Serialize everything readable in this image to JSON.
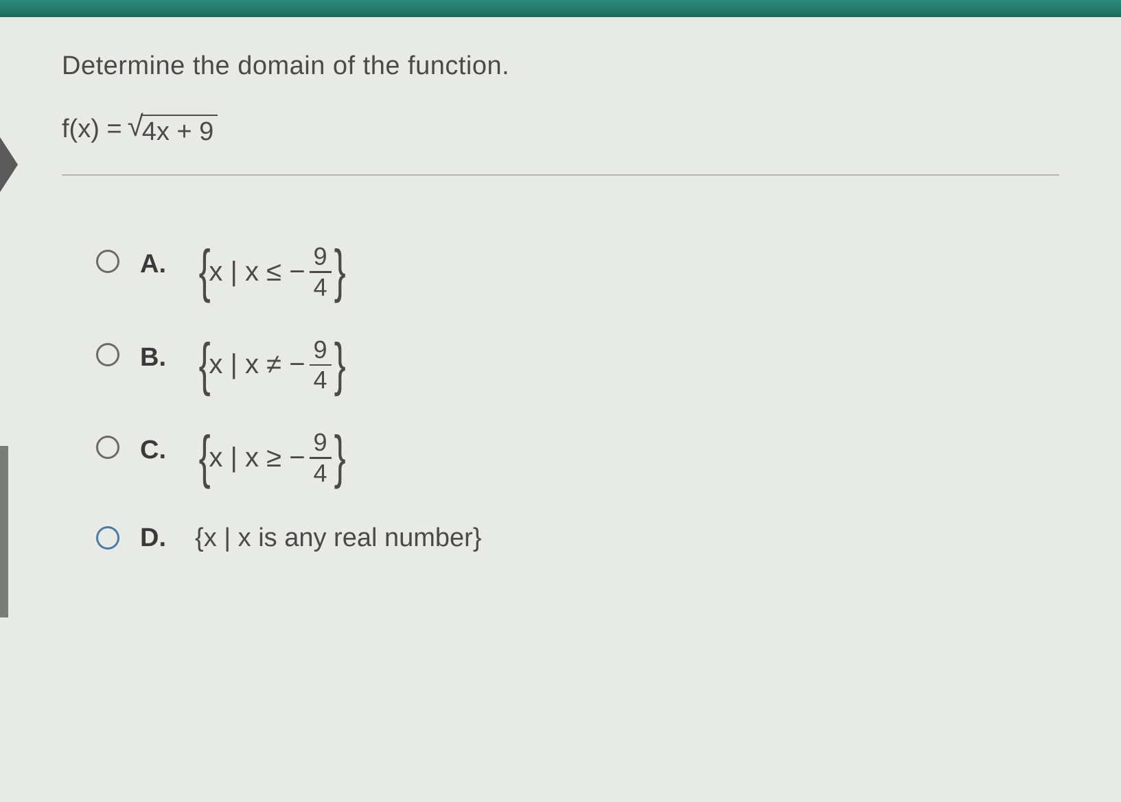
{
  "question": {
    "prompt": "Determine the domain of the function.",
    "function_lhs": "f(x) = ",
    "sqrt_content": "4x + 9"
  },
  "options": {
    "a": {
      "label": "A.",
      "prefix": "x | x ≤ − ",
      "numerator": "9",
      "denominator": "4"
    },
    "b": {
      "label": "B.",
      "prefix": "x | x ≠ − ",
      "numerator": "9",
      "denominator": "4"
    },
    "c": {
      "label": "C.",
      "prefix": "x | x ≥ − ",
      "numerator": "9",
      "denominator": "4"
    },
    "d": {
      "label": "D.",
      "text": "{x | x is any real number}"
    }
  },
  "colors": {
    "background": "#e8eae5",
    "text": "#4a4a4a",
    "radio_border": "#6a6a6a",
    "radio_blue": "#4a7ba8",
    "top_bar": "#2a8a7a"
  }
}
